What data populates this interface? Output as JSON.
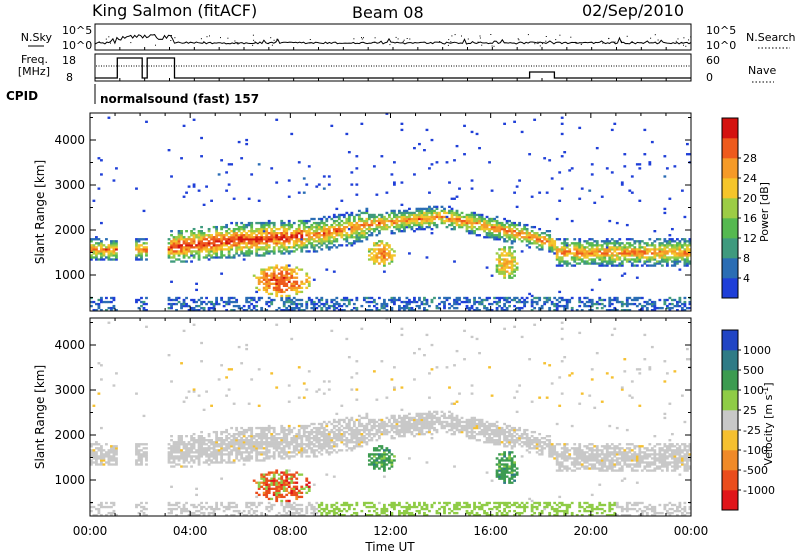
{
  "header": {
    "station": "King Salmon (fitACF)",
    "beam": "Beam 08",
    "date": "02/Sep/2010"
  },
  "top_panel": {
    "nsky_label": "N.Sky",
    "nsearch_label": "N.Search",
    "freq_label_1": "Freq.",
    "freq_label_2": "[MHz]",
    "nave_label": "Nave",
    "cpid_label": "CPID",
    "cpid_text": "normalsound (fast) 157",
    "noise_left_ticks": [
      "10^5",
      "10^0"
    ],
    "noise_right_ticks": [
      "10^5",
      "10^0"
    ],
    "freq_ticks": [
      "18",
      "8"
    ],
    "nave_ticks": [
      "60",
      "0"
    ]
  },
  "chart_data": [
    {
      "type": "heatmap",
      "name": "power",
      "ylabel": "Slant Range [km]",
      "yticks": [
        "1000",
        "2000",
        "3000",
        "4000"
      ],
      "ylim": [
        200,
        4600
      ],
      "xlim_hours": [
        0,
        24
      ],
      "colorbar": {
        "label": "Power [dB]",
        "ticks": [
          "4",
          "8",
          "12",
          "16",
          "20",
          "24",
          "28"
        ],
        "colors": [
          "#1f3fd8",
          "#2a6db4",
          "#3f9a7e",
          "#55b950",
          "#9ccc45",
          "#f5c52a",
          "#f59a27",
          "#ee5a1c",
          "#d4120f"
        ]
      }
    },
    {
      "type": "heatmap",
      "name": "velocity",
      "ylabel": "Slant Range [km]",
      "yticks": [
        "1000",
        "2000",
        "3000",
        "4000"
      ],
      "ylim": [
        200,
        4600
      ],
      "xlim_hours": [
        0,
        24
      ],
      "xticks": [
        "00:00",
        "04:00",
        "08:00",
        "12:00",
        "16:00",
        "20:00",
        "00:00"
      ],
      "xlabel": "Time UT",
      "colorbar": {
        "label_main": "Velocity  [m s",
        "label_sup": "-1",
        "label_end": "]",
        "ticks": [
          "1000",
          "500",
          "100",
          "25",
          "-25",
          "-100",
          "-500",
          "-1000"
        ],
        "colors": [
          "#2145c4",
          "#2f7b86",
          "#3c9b50",
          "#8fcc46",
          "#c8c8c8",
          "#f5c030",
          "#f08a28",
          "#ea4d1c",
          "#e0151a"
        ]
      }
    }
  ]
}
